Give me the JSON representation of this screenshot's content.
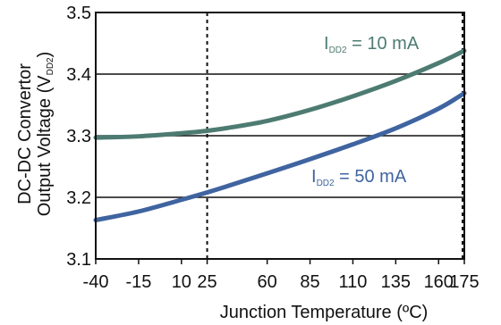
{
  "chart_data": {
    "type": "line",
    "title": "",
    "xlabel": "Junction Temperature (ºC)",
    "ylabel_line1": "DC-DC Convertor",
    "ylabel_line2_main": "Output Voltage (V",
    "ylabel_line2_sub": "DD2",
    "ylabel_line2_end": ")",
    "xlim": [
      -40,
      175
    ],
    "ylim": [
      3.1,
      3.5
    ],
    "x_ticks": [
      -40,
      -15,
      10,
      25,
      60,
      85,
      110,
      135,
      160,
      175
    ],
    "y_ticks": [
      "3.1",
      "3.2",
      "3.3",
      "3.4",
      "3.5"
    ],
    "y_tick_values": [
      3.1,
      3.2,
      3.3,
      3.4,
      3.5
    ],
    "grid_y": true,
    "reference_lines_x": [
      25,
      175
    ],
    "series": [
      {
        "name_main": "I",
        "name_sub": "DD2",
        "name_rest": " = 10 mA",
        "color": "#4d7b72",
        "x": [
          -40,
          -15,
          10,
          25,
          40,
          60,
          85,
          110,
          135,
          160,
          175
        ],
        "y": [
          3.297,
          3.299,
          3.304,
          3.308,
          3.314,
          3.324,
          3.342,
          3.364,
          3.389,
          3.418,
          3.438
        ]
      },
      {
        "name_main": "I",
        "name_sub": "DD2",
        "name_rest": " = 50 mA",
        "color": "#3f64a0",
        "x": [
          -40,
          -15,
          10,
          25,
          40,
          60,
          85,
          110,
          135,
          160,
          175
        ],
        "y": [
          3.163,
          3.177,
          3.196,
          3.208,
          3.221,
          3.239,
          3.262,
          3.286,
          3.312,
          3.344,
          3.369
        ]
      }
    ]
  }
}
